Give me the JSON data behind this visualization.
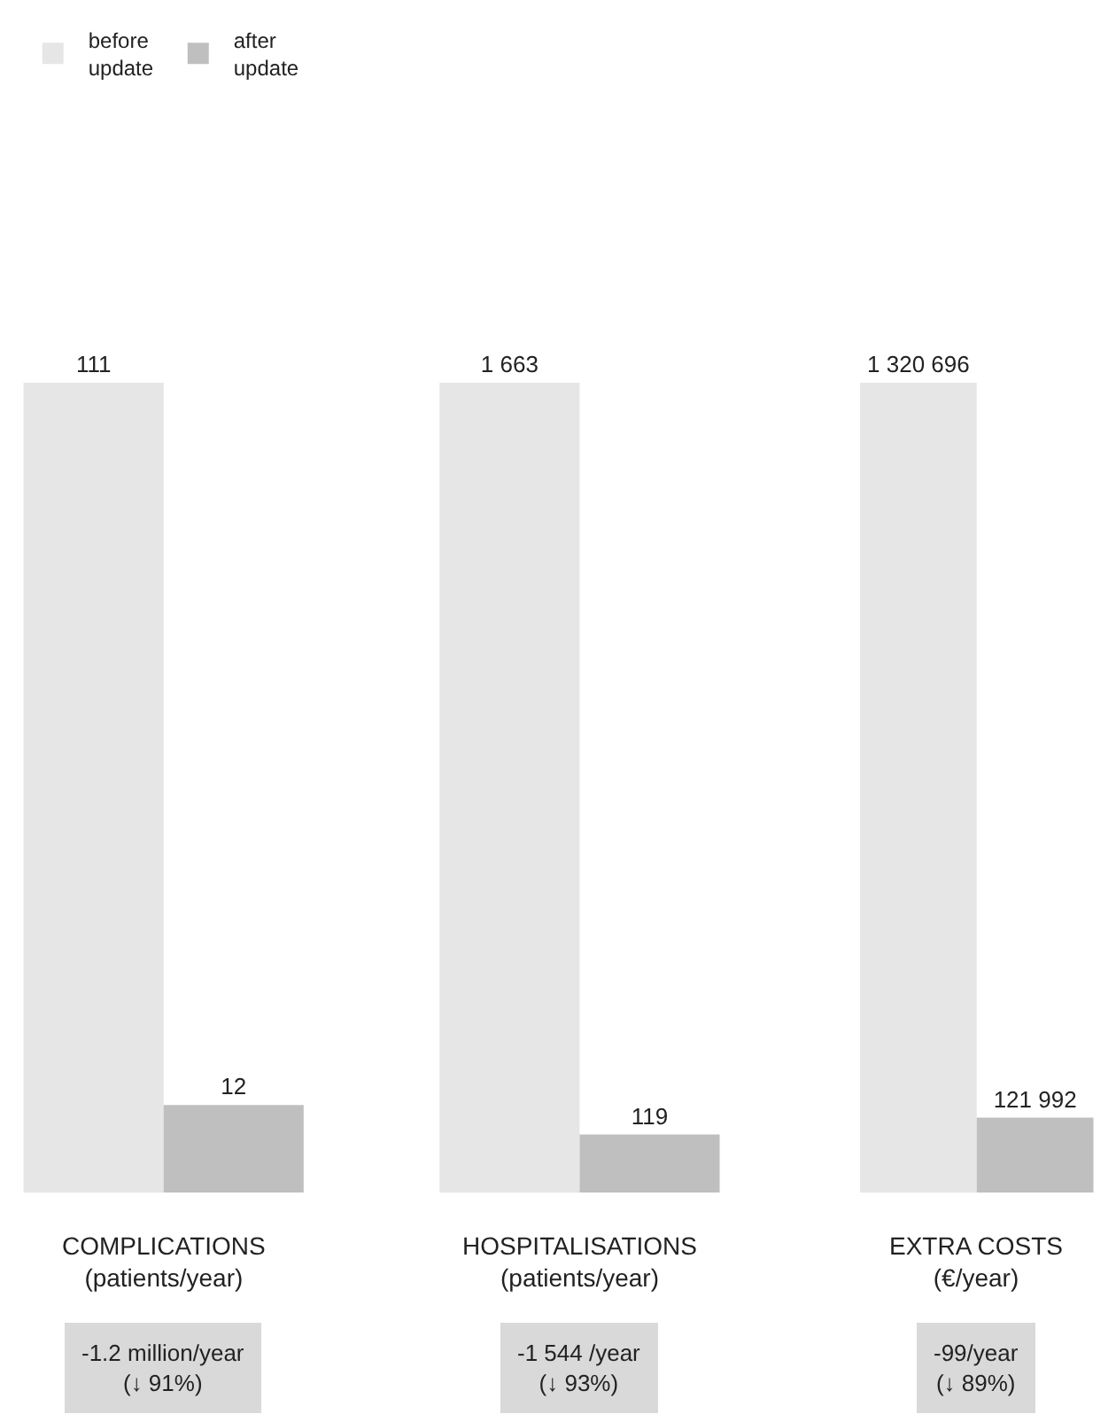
{
  "chart_data": [
    {
      "type": "bar",
      "categories": [
        null
      ],
      "xlabel": "COMPLICATIONS\n(patients/year)",
      "series": [
        {
          "name": "before\nupdate",
          "color": "#e6e6e6",
          "values": [
            111
          ],
          "value_labels": [
            "111"
          ]
        },
        {
          "name": "after\nupdate",
          "color": "#bfbfbf",
          "values": [
            12
          ],
          "value_labels": [
            "12"
          ]
        }
      ],
      "legend": "top",
      "tick_labels": false,
      "annotations": [
        "-1.2 million/year\n(↓ 91%)"
      ]
    },
    {
      "type": "bar",
      "categories": [
        null
      ],
      "xlabel": "HOSPITALISATIONS\n(patients/year)",
      "series": [
        {
          "color": "#e6e6e6",
          "values": [
            1663
          ],
          "value_labels": [
            "1 663"
          ]
        },
        {
          "color": "#bfbfbf",
          "values": [
            119
          ],
          "value_labels": [
            "119"
          ]
        }
      ],
      "tick_labels": false,
      "annotations": [
        "-1 544 /year\n(↓ 93%)"
      ]
    },
    {
      "type": "bar",
      "categories": [
        null
      ],
      "xlabel": "EXTRA COSTS\n(€/year)",
      "series": [
        {
          "color": "#e6e6e6",
          "values": [
            1320696
          ],
          "value_labels": [
            "1 320 696"
          ]
        },
        {
          "color": "#bfbfbf",
          "values": [
            121992
          ],
          "value_labels": [
            "121 992"
          ]
        }
      ],
      "tick_labels": false,
      "annotations": [
        "-99/year\n(↓ 89%)"
      ]
    }
  ]
}
